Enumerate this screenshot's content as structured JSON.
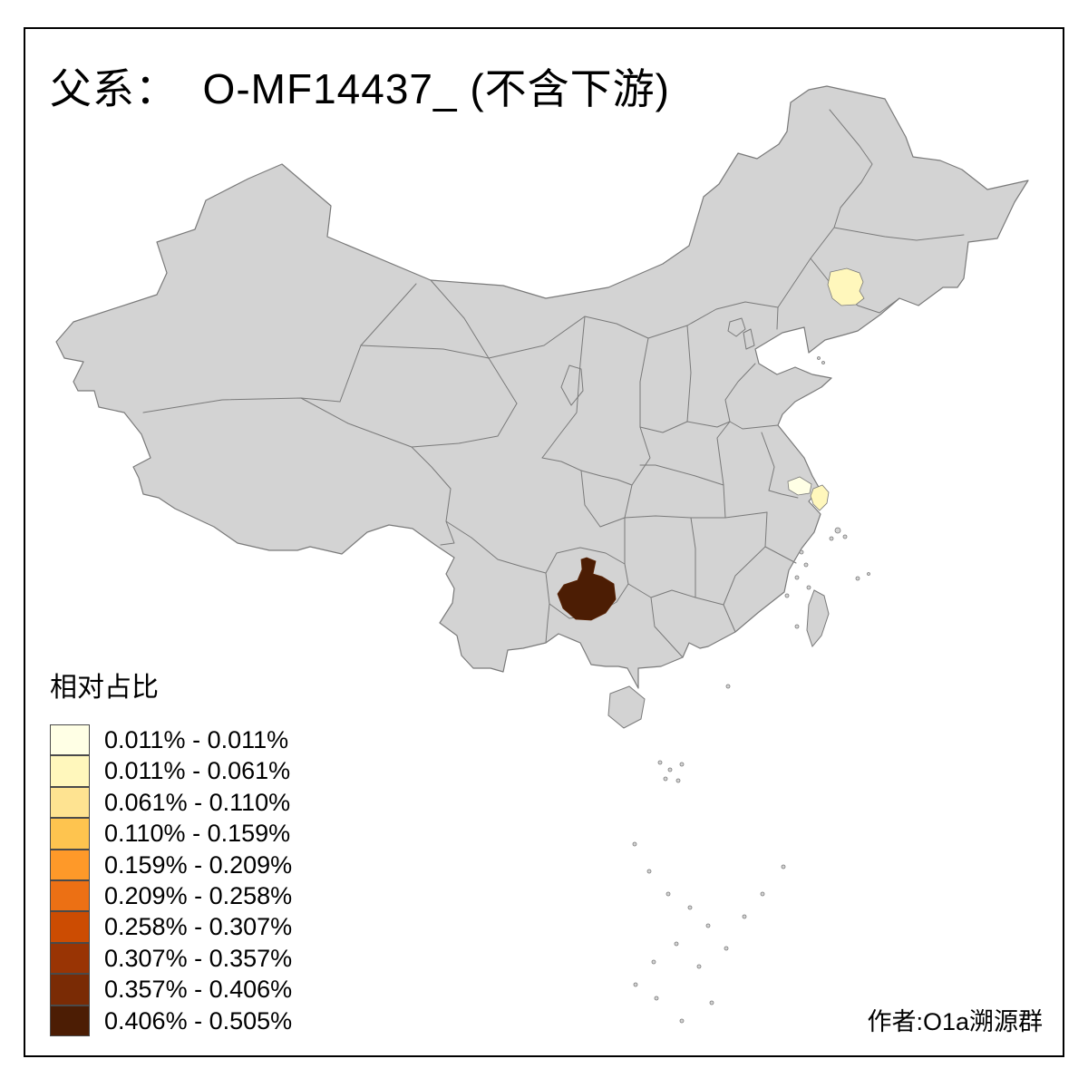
{
  "title": "父系：  O-MF14437_ (不含下游)",
  "attribution": "作者:O1a溯源群",
  "legend": {
    "title": "相对占比",
    "items": [
      {
        "label": "0.011% - 0.011%",
        "color": "#FFFFE5"
      },
      {
        "label": "0.011% - 0.061%",
        "color": "#FFF7BC"
      },
      {
        "label": "0.061% - 0.110%",
        "color": "#FEE391"
      },
      {
        "label": "0.110% - 0.159%",
        "color": "#FEC44F"
      },
      {
        "label": "0.159% - 0.209%",
        "color": "#FE9929"
      },
      {
        "label": "0.209% - 0.258%",
        "color": "#EC7014"
      },
      {
        "label": "0.258% - 0.307%",
        "color": "#CC4C02"
      },
      {
        "label": "0.307% - 0.357%",
        "color": "#993404"
      },
      {
        "label": "0.357% - 0.406%",
        "color": "#7A2B05"
      },
      {
        "label": "0.406% - 0.505%",
        "color": "#4C1D04"
      }
    ]
  },
  "map": {
    "base_fill": "#D3D3D3",
    "border_color": "#7A7A7A",
    "background": "#FFFFFF",
    "frame_color": "#000000",
    "highlights": [
      {
        "id": "northeast-area",
        "color": "#FFF7BC",
        "bin": "0.011% - 0.061%"
      },
      {
        "id": "jiangsu-area",
        "color": "#FFFFE5",
        "bin": "0.011% - 0.011%"
      },
      {
        "id": "shanghai-area",
        "color": "#FFF7BC",
        "bin": "0.011% - 0.061%"
      },
      {
        "id": "southwest-area",
        "color": "#4C1D04",
        "bin": "0.406% - 0.505%"
      }
    ]
  }
}
